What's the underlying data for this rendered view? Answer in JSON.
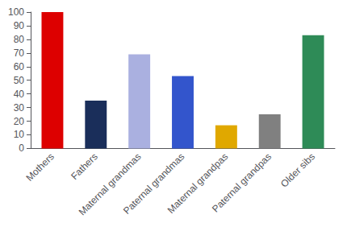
{
  "chart_data": {
    "type": "bar",
    "categories": [
      "Mothers",
      "Fathers",
      "Maternal grandmas",
      "Paternal grandmas",
      "Maternal grandpas",
      "Paternal grandpas",
      "Older sibs"
    ],
    "values": [
      100,
      35,
      69,
      53,
      17,
      25,
      83
    ],
    "colors": [
      "#dd0000",
      "#1a2e5a",
      "#aab0e0",
      "#3355cc",
      "#e0a800",
      "#808080",
      "#2e8b57"
    ],
    "ylim": [
      0,
      100
    ],
    "yticks": [
      0,
      10,
      20,
      30,
      40,
      50,
      60,
      70,
      80,
      90,
      100
    ],
    "grid": false
  }
}
